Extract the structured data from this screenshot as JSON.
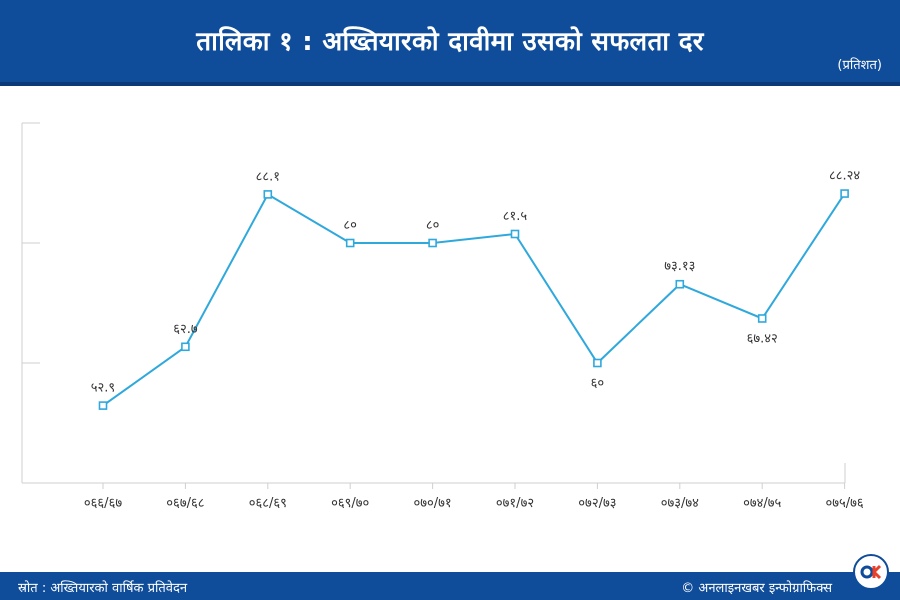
{
  "header": {
    "title": "तालिका १ : अख्तियारको दावीमा उसको सफलता दर",
    "unit": "(प्रतिशत)"
  },
  "footer": {
    "source": "स्रोत : अख्तियारको वार्षिक प्रतिवेदन",
    "credit": "© अनलाइनखबर इन्फोग्राफिक्स"
  },
  "colors": {
    "header_bg": "#0f4c99",
    "line": "#2fa8dc",
    "badge_accent": "#e8412b"
  },
  "chart_data": {
    "type": "line",
    "title": "तालिका १ : अख्तियारको दावीमा उसको सफलता दर",
    "unit": "(प्रतिशत)",
    "categories": [
      "०६६/६७",
      "०६७/६८",
      "०६८/६९",
      "०६९/७०",
      "०७०/७१",
      "०७१/७२",
      "०७२/७३",
      "०७३/७४",
      "०७४/७५",
      "०७५/७६"
    ],
    "values": [
      52.9,
      62.7,
      88.1,
      80,
      80,
      81.5,
      60,
      73.13,
      67.42,
      88.24
    ],
    "value_labels": [
      "५२.९",
      "६२.७",
      "८८.१",
      "८०",
      "८०",
      "८१.५",
      "६०",
      "७३.१३",
      "६७.४२",
      "८८.२४"
    ],
    "label_position": [
      "above",
      "above",
      "above",
      "above",
      "above",
      "above",
      "below",
      "above",
      "below",
      "above"
    ],
    "ylim": [
      40,
      100
    ],
    "grid": false,
    "legend": "none"
  }
}
